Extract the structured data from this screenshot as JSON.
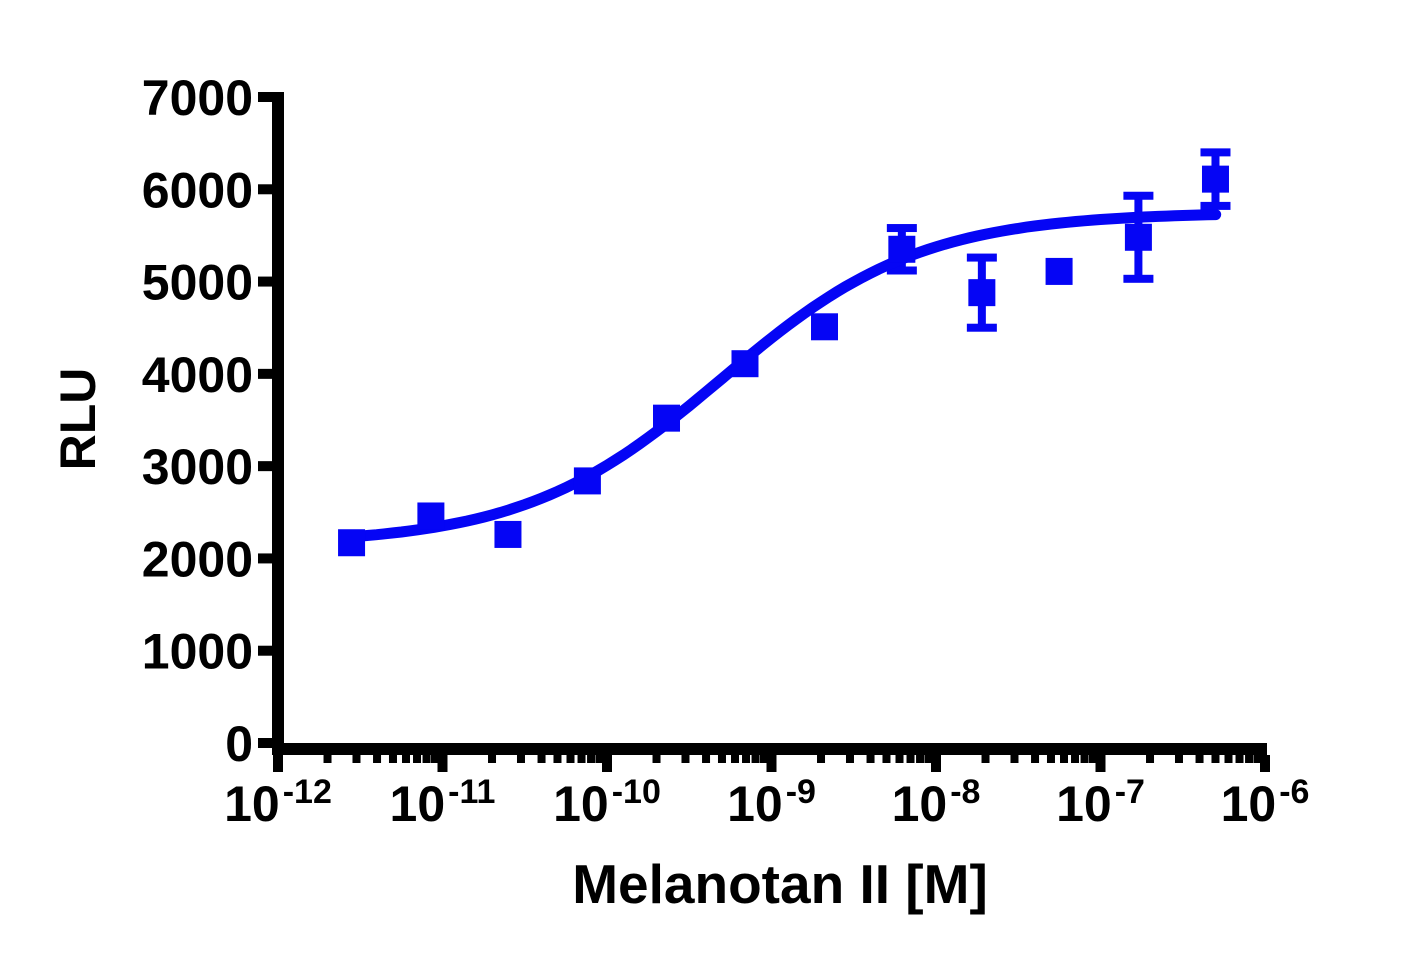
{
  "figure": {
    "background": "#ffffff",
    "axis_color": "#000000",
    "accent_color": "#0505f5"
  },
  "chart_data": {
    "type": "scatter",
    "title": "",
    "xlabel": "Melanotan II [M]",
    "ylabel": "RLU",
    "x_scale": "log10",
    "x_tick_exponents": [
      -12,
      -11,
      -10,
      -9,
      -8,
      -7,
      -6
    ],
    "x_tick_base": "10",
    "ylim": [
      0,
      7000
    ],
    "y_ticks": [
      0,
      1000,
      2000,
      3000,
      4000,
      5000,
      6000,
      7000
    ],
    "grid": false,
    "legend": "none",
    "series": [
      {
        "name": "Melanotan II",
        "marker": "square",
        "color": "#0505f5",
        "points": [
          {
            "conc_M": 2.8e-12,
            "rlu": 2170,
            "sem": 0
          },
          {
            "conc_M": 8.5e-12,
            "rlu": 2460,
            "sem": 0
          },
          {
            "conc_M": 2.5e-11,
            "rlu": 2260,
            "sem": 0
          },
          {
            "conc_M": 7.6e-11,
            "rlu": 2840,
            "sem": 0
          },
          {
            "conc_M": 2.3e-10,
            "rlu": 3520,
            "sem": 0
          },
          {
            "conc_M": 6.9e-10,
            "rlu": 4110,
            "sem": 0
          },
          {
            "conc_M": 2.1e-09,
            "rlu": 4510,
            "sem": 0
          },
          {
            "conc_M": 6.2e-09,
            "rlu": 5350,
            "sem": 230
          },
          {
            "conc_M": 1.9e-08,
            "rlu": 4880,
            "sem": 380
          },
          {
            "conc_M": 5.6e-08,
            "rlu": 5110,
            "sem": 0
          },
          {
            "conc_M": 1.7e-07,
            "rlu": 5480,
            "sem": 450
          },
          {
            "conc_M": 5e-07,
            "rlu": 6110,
            "sem": 290
          }
        ]
      }
    ],
    "fit": {
      "model": "4PL-sigmoid",
      "bottom": 2150,
      "top": 5750,
      "log_ec50": -9.3,
      "hill": 0.72,
      "log_x_start": -11.55,
      "log_x_end": -6.3
    }
  }
}
